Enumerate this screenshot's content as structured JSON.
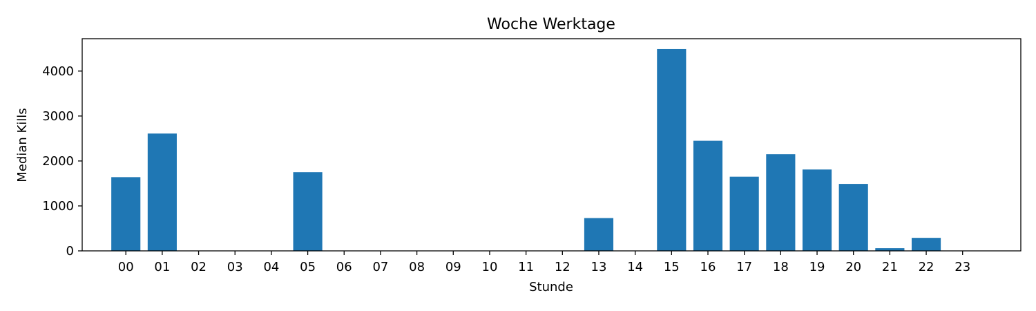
{
  "chart_data": {
    "type": "bar",
    "title": "Woche Werktage",
    "xlabel": "Stunde",
    "ylabel": "Median Kills",
    "categories": [
      "00",
      "01",
      "02",
      "03",
      "04",
      "05",
      "06",
      "07",
      "08",
      "09",
      "10",
      "11",
      "12",
      "13",
      "14",
      "15",
      "16",
      "17",
      "18",
      "19",
      "20",
      "21",
      "22",
      "23"
    ],
    "values": [
      1640,
      2610,
      0,
      0,
      0,
      1750,
      0,
      0,
      0,
      0,
      0,
      0,
      0,
      730,
      0,
      4490,
      2450,
      1650,
      2150,
      1810,
      1490,
      60,
      290,
      0
    ],
    "ylim": [
      0,
      4720
    ],
    "yticks": [
      0,
      1000,
      2000,
      3000,
      4000
    ],
    "grid": false,
    "legend": "none",
    "bar_color": "#1f77b4"
  }
}
